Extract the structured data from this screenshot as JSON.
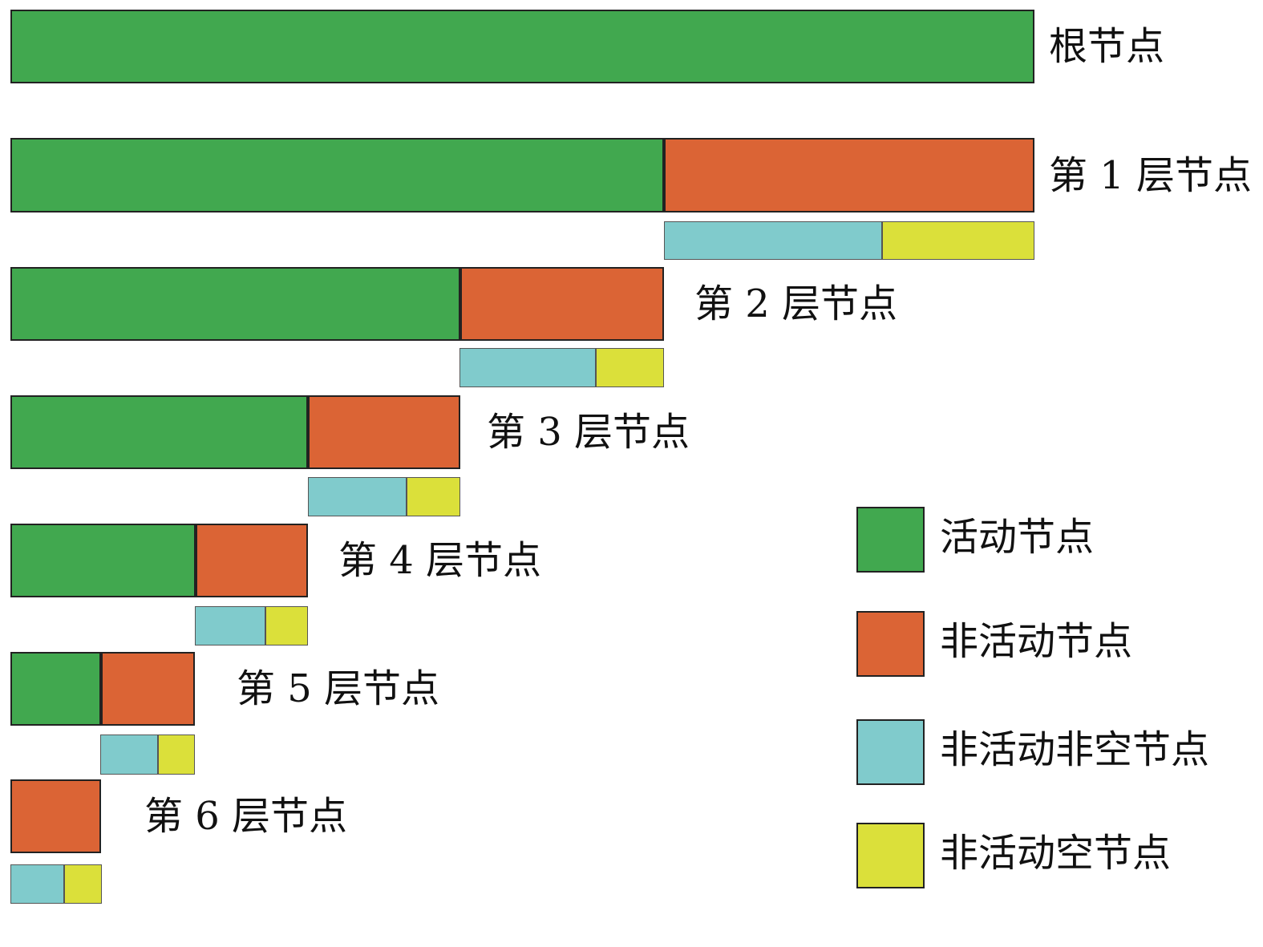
{
  "colors": {
    "active": "#41a84f",
    "inactive": "#db6435",
    "inactive_nonempty": "#80cbcc",
    "inactive_empty": "#dbe03a"
  },
  "levels": [
    {
      "label": "根节点"
    },
    {
      "label": "第 1 层节点"
    },
    {
      "label": "第 2 层节点"
    },
    {
      "label": "第 3 层节点"
    },
    {
      "label": "第 4 层节点"
    },
    {
      "label": "第 5 层节点"
    },
    {
      "label": "第 6 层节点"
    }
  ],
  "legend": [
    {
      "key": "active",
      "label": "活动节点"
    },
    {
      "key": "inactive",
      "label": "非活动节点"
    },
    {
      "key": "inactive_nonempty",
      "label": "非活动非空节点"
    },
    {
      "key": "inactive_empty",
      "label": "非活动空节点"
    }
  ]
}
